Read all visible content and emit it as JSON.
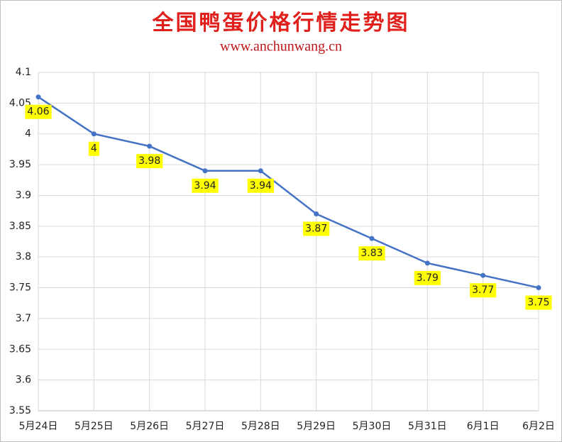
{
  "chart_data": {
    "type": "line",
    "title": "全国鸭蛋价格行情走势图",
    "subtitle": "www.anchunwang.cn",
    "categories": [
      "5月24日",
      "5月25日",
      "5月26日",
      "5月27日",
      "5月28日",
      "5月29日",
      "5月30日",
      "5月31日",
      "6月1日",
      "6月2日"
    ],
    "values": [
      4.06,
      4,
      3.98,
      3.94,
      3.94,
      3.87,
      3.83,
      3.79,
      3.77,
      3.75
    ],
    "color": "#4472c4",
    "ylim": [
      3.55,
      4.1
    ],
    "yticks": [
      3.55,
      3.6,
      3.65,
      3.7,
      3.75,
      3.8,
      3.85,
      3.9,
      3.95,
      4,
      4.05,
      4.1
    ],
    "grid": true
  }
}
